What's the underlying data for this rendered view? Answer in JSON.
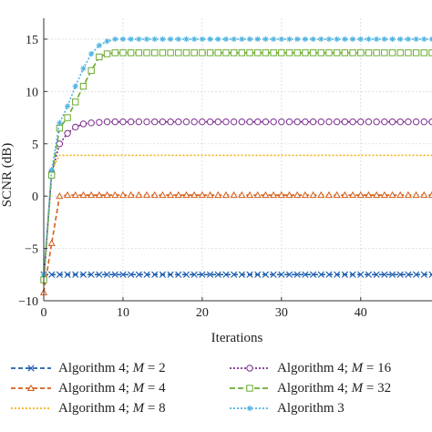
{
  "chart_data": {
    "type": "line",
    "xlabel": "Iterations",
    "ylabel": "SCNR (dB)",
    "xlim": [
      0,
      49
    ],
    "ylim": [
      -10,
      17
    ],
    "xticks": [
      0,
      10,
      20,
      30,
      40
    ],
    "yticks": [
      -10,
      -5,
      0,
      5,
      10,
      15
    ],
    "grid": true,
    "legend_position": "bottom",
    "x": [
      0,
      1,
      2,
      3,
      4,
      5,
      6,
      7,
      8,
      9,
      10,
      11,
      12,
      13,
      14,
      15,
      16,
      17,
      18,
      19,
      20,
      21,
      22,
      23,
      24,
      25,
      26,
      27,
      28,
      29,
      30,
      31,
      32,
      33,
      34,
      35,
      36,
      37,
      38,
      39,
      40,
      41,
      42,
      43,
      44,
      45,
      46,
      47,
      48,
      49
    ],
    "series": [
      {
        "name": "Algorithm 4; M = 2",
        "legend_prefix": "Algorithm 4; ",
        "legend_var": "M",
        "legend_suffix": " = 2",
        "color": "#1f5fae",
        "marker": "x",
        "dash": "5,3",
        "values": [
          -7.5,
          -7.5,
          -7.5,
          -7.5,
          -7.5,
          -7.5,
          -7.5,
          -7.5,
          -7.5,
          -7.5,
          -7.5,
          -7.5,
          -7.5,
          -7.5,
          -7.5,
          -7.5,
          -7.5,
          -7.5,
          -7.5,
          -7.5,
          -7.5,
          -7.5,
          -7.5,
          -7.5,
          -7.5,
          -7.5,
          -7.5,
          -7.5,
          -7.5,
          -7.5,
          -7.5,
          -7.5,
          -7.5,
          -7.5,
          -7.5,
          -7.5,
          -7.5,
          -7.5,
          -7.5,
          -7.5,
          -7.5,
          -7.5,
          -7.5,
          -7.5,
          -7.5,
          -7.5,
          -7.5,
          -7.5,
          -7.5,
          -7.5
        ]
      },
      {
        "name": "Algorithm 4; M = 4",
        "legend_prefix": "Algorithm 4; ",
        "legend_var": "M",
        "legend_suffix": " = 4",
        "color": "#d55e1a",
        "marker": "triangle",
        "dash": "5,3",
        "values": [
          -9.2,
          -4.5,
          0.0,
          0.1,
          0.1,
          0.1,
          0.1,
          0.1,
          0.1,
          0.1,
          0.1,
          0.1,
          0.1,
          0.1,
          0.1,
          0.1,
          0.1,
          0.1,
          0.1,
          0.1,
          0.1,
          0.1,
          0.1,
          0.1,
          0.1,
          0.1,
          0.1,
          0.1,
          0.1,
          0.1,
          0.1,
          0.1,
          0.1,
          0.1,
          0.1,
          0.1,
          0.1,
          0.1,
          0.1,
          0.1,
          0.1,
          0.1,
          0.1,
          0.1,
          0.1,
          0.1,
          0.1,
          0.1,
          0.1,
          0.1
        ]
      },
      {
        "name": "Algorithm 4; M = 8",
        "legend_prefix": "Algorithm 4; ",
        "legend_var": "M",
        "legend_suffix": " = 8",
        "color": "#f0b21a",
        "marker": "none",
        "dash": "2,2",
        "values": [
          -8.5,
          2.5,
          3.9,
          3.9,
          3.9,
          3.9,
          3.9,
          3.9,
          3.9,
          3.9,
          3.9,
          3.9,
          3.9,
          3.9,
          3.9,
          3.9,
          3.9,
          3.9,
          3.9,
          3.9,
          3.9,
          3.9,
          3.9,
          3.9,
          3.9,
          3.9,
          3.9,
          3.9,
          3.9,
          3.9,
          3.9,
          3.9,
          3.9,
          3.9,
          3.9,
          3.9,
          3.9,
          3.9,
          3.9,
          3.9,
          3.9,
          3.9,
          3.9,
          3.9,
          3.9,
          3.9,
          3.9,
          3.9,
          3.9,
          3.9
        ]
      },
      {
        "name": "Algorithm 4; M = 16",
        "legend_prefix": "Algorithm 4; ",
        "legend_var": "M",
        "legend_suffix": " = 16",
        "color": "#7b2d8e",
        "marker": "circle",
        "dash": "2,2",
        "values": [
          -8.0,
          2.2,
          5.0,
          6.0,
          6.6,
          6.9,
          7.0,
          7.05,
          7.1,
          7.1,
          7.1,
          7.1,
          7.1,
          7.1,
          7.1,
          7.1,
          7.1,
          7.1,
          7.1,
          7.1,
          7.1,
          7.1,
          7.1,
          7.1,
          7.1,
          7.1,
          7.1,
          7.1,
          7.1,
          7.1,
          7.1,
          7.1,
          7.1,
          7.1,
          7.1,
          7.1,
          7.1,
          7.1,
          7.1,
          7.1,
          7.1,
          7.1,
          7.1,
          7.1,
          7.1,
          7.1,
          7.1,
          7.1,
          7.1,
          7.1
        ]
      },
      {
        "name": "Algorithm 4; M = 32",
        "legend_prefix": "Algorithm 4; ",
        "legend_var": "M",
        "legend_suffix": " = 32",
        "color": "#6aab2e",
        "marker": "square",
        "dash": "6,3",
        "values": [
          -8.0,
          2.0,
          6.5,
          7.5,
          9.0,
          10.5,
          12.0,
          13.3,
          13.6,
          13.7,
          13.7,
          13.7,
          13.7,
          13.7,
          13.7,
          13.7,
          13.7,
          13.7,
          13.7,
          13.7,
          13.7,
          13.7,
          13.7,
          13.7,
          13.7,
          13.7,
          13.7,
          13.7,
          13.7,
          13.7,
          13.7,
          13.7,
          13.7,
          13.7,
          13.7,
          13.7,
          13.7,
          13.7,
          13.7,
          13.7,
          13.7,
          13.7,
          13.7,
          13.7,
          13.7,
          13.7,
          13.7,
          13.7,
          13.7,
          13.7
        ]
      },
      {
        "name": "Algorithm 3",
        "legend_prefix": "Algorithm 3",
        "legend_var": "",
        "legend_suffix": "",
        "color": "#4fb3e0",
        "marker": "star",
        "dash": "2,2",
        "values": [
          -7.5,
          2.5,
          7.0,
          8.6,
          10.5,
          12.2,
          13.6,
          14.4,
          14.8,
          15.0,
          15.0,
          15.0,
          15.0,
          15.0,
          15.0,
          15.0,
          15.0,
          15.0,
          15.0,
          15.0,
          15.0,
          15.0,
          15.0,
          15.0,
          15.0,
          15.0,
          15.0,
          15.0,
          15.0,
          15.0,
          15.0,
          15.0,
          15.0,
          15.0,
          15.0,
          15.0,
          15.0,
          15.0,
          15.0,
          15.0,
          15.0,
          15.0,
          15.0,
          15.0,
          15.0,
          15.0,
          15.0,
          15.0,
          15.0,
          15.0
        ]
      }
    ]
  }
}
